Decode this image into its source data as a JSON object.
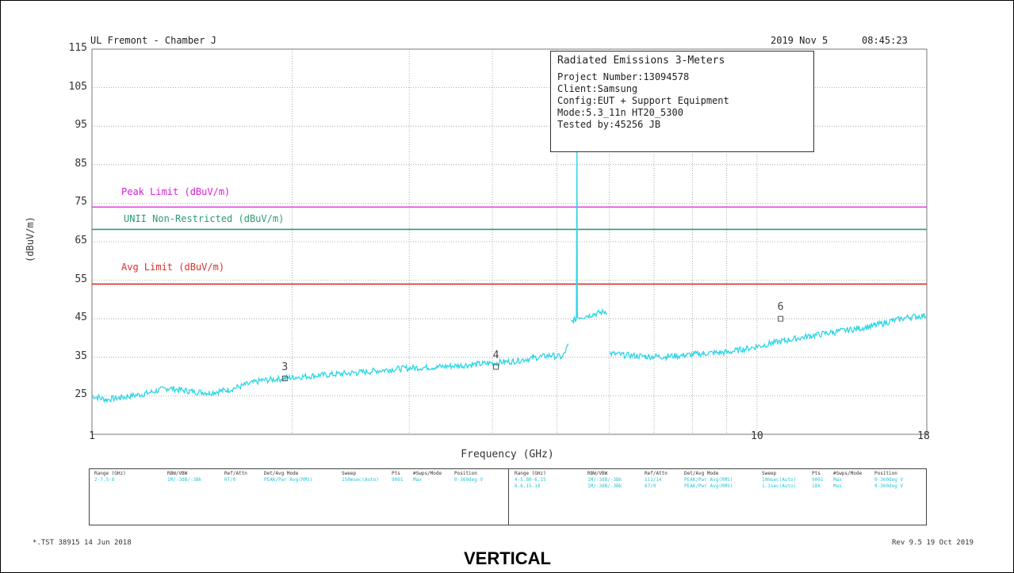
{
  "header": {
    "lab": "UL Fremont - Chamber J",
    "date": "2019 Nov 5",
    "time": "08:45:23"
  },
  "info": {
    "title": "Radiated Emissions 3-Meters",
    "lines": [
      "Project Number:13094578",
      "Client:Samsung",
      "Config:EUT + Support Equipment",
      "Mode:5.3_11n HT20_5300",
      "Tested by:45256 JB"
    ]
  },
  "chart_data": {
    "type": "line",
    "title": "",
    "xlabel": "Frequency (GHz)",
    "ylabel": "(dBuV/m)",
    "x_scale": "log",
    "xlim": [
      1,
      18
    ],
    "ylim": [
      15,
      115
    ],
    "y_ticks": [
      25,
      35,
      45,
      55,
      65,
      75,
      85,
      95,
      105,
      115
    ],
    "x_tick_labels": [
      {
        "value": 1,
        "label": "1"
      },
      {
        "value": 10,
        "label": "10"
      },
      {
        "value": 18,
        "label": "18"
      }
    ],
    "x_grid": [
      2,
      3,
      4,
      5,
      6,
      7,
      8,
      9,
      10
    ],
    "grid": true,
    "limit_lines": [
      {
        "name": "Peak Limit (dBuV/m)",
        "value": 74,
        "color": "#e040e0"
      },
      {
        "name": "UNII Non-Restricted (dBuV/m)",
        "value": 68.2,
        "color": "#2aa06e"
      },
      {
        "name": "Avg Limit (dBuV/m)",
        "value": 54,
        "color": "#d9302a"
      }
    ],
    "trace_color": "#2ed6e6",
    "trace_segments": [
      {
        "x": [
          1.0,
          1.05,
          1.1,
          1.2,
          1.3,
          1.4,
          1.5,
          1.6,
          1.7,
          1.8,
          1.9,
          2.0,
          2.2,
          2.5,
          2.8,
          3.0,
          3.3,
          3.6,
          4.0,
          4.3,
          4.6,
          4.9,
          5.1,
          5.2
        ],
        "y": [
          25.0,
          24.0,
          24.5,
          25.5,
          27.0,
          26.2,
          25.8,
          26.5,
          27.8,
          29.0,
          29.3,
          29.8,
          30.3,
          31.0,
          31.8,
          32.2,
          32.5,
          32.9,
          33.5,
          34.0,
          34.8,
          35.5,
          35.0,
          38.0
        ]
      },
      {
        "x": [
          5.25,
          5.3,
          5.35,
          5.36,
          5.37,
          5.45,
          5.6,
          5.8,
          5.95
        ],
        "y": [
          44.0,
          44.5,
          45.0,
          92.0,
          45.5,
          45.5,
          46.0,
          46.5,
          47.0
        ]
      },
      {
        "x": [
          6.0,
          6.3,
          6.8,
          7.3,
          7.8,
          8.3,
          9.0,
          9.5,
          10.0,
          10.5,
          11.0,
          12.0,
          13.0,
          14.0,
          15.0,
          16.0,
          17.0,
          18.0
        ],
        "y": [
          36.0,
          35.6,
          35.2,
          35.2,
          35.5,
          36.0,
          36.3,
          37.0,
          37.8,
          38.6,
          39.3,
          40.5,
          41.5,
          42.3,
          43.2,
          44.5,
          45.5,
          45.8
        ]
      }
    ],
    "markers": [
      {
        "label": "3",
        "x": 1.95,
        "y": 29.5
      },
      {
        "label": "4",
        "x": 4.05,
        "y": 32.5
      },
      {
        "label": "6",
        "x": 10.85,
        "y": 45.0
      }
    ]
  },
  "settings": {
    "left_headers": [
      "Range (GHz)",
      "RBW/VBW",
      "Ref/Attn",
      "Det/Avg Mode",
      "Sweep",
      "Pts",
      "#Swps/Mode",
      "Position"
    ],
    "left_rows": [
      [
        "2-7.5-8",
        "1M/-3dB/-3Bk",
        "0T/0",
        "PEAK/Pwr Avg(RMS)",
        "1S0msec(Auto)",
        "9001",
        "Max",
        "0-360deg V"
      ]
    ],
    "right_headers": [
      "Range (GHz)",
      "RBW/VBW",
      "Ref/Attn",
      "Det/Avg Mode",
      "Sweep",
      "Pts",
      "#Swps/Mode",
      "Position"
    ],
    "right_rows": [
      [
        "4-5.80-6.15",
        "1M/-3dB/-3Bk",
        "111/14",
        "PEAK/Pwr Avg(RMS)",
        "10msec(Auto)",
        "9001",
        "Max",
        "0-360deg V"
      ],
      [
        "6-6.15-18",
        "1M/-3dB/-3Bk",
        "67/0",
        "PEAK/Pwr Avg(RMS)",
        "1.1sec(Auto)",
        "18k",
        "Max",
        "0-360deg V"
      ]
    ]
  },
  "footer": {
    "left": "*.TST 38915 14 Jun 2018",
    "right": "Rev 9.5 19 Oct 2019"
  },
  "polarity": "VERTICAL"
}
